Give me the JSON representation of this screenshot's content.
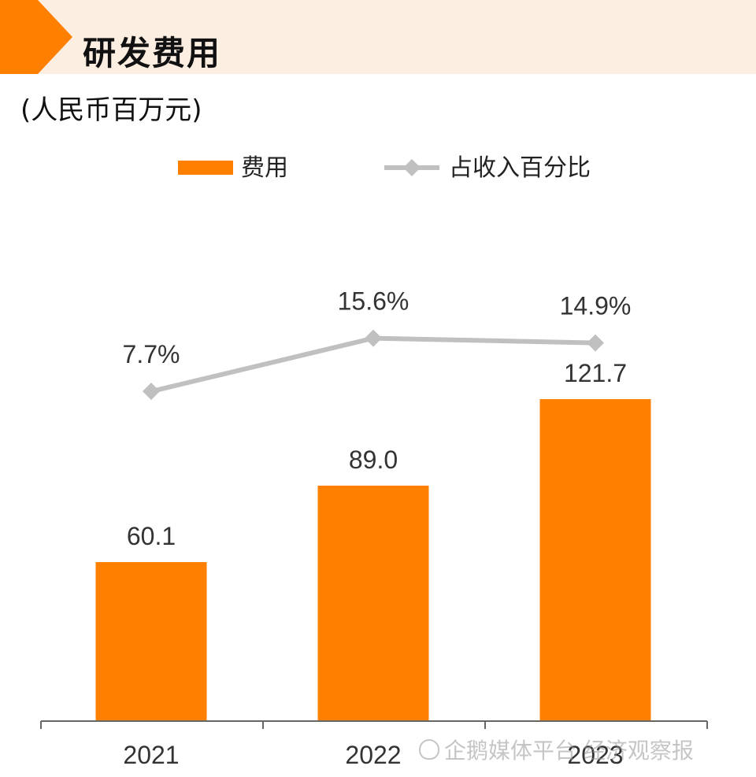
{
  "title": "研发费用",
  "unit_label": "(人民币百万元)",
  "watermark": "企鹅媒体平台 经济观察报",
  "colors": {
    "bar": "#ff7f00",
    "line": "#c0c0c0",
    "header_band": "#fdeee2",
    "header_arrow": "#ff7f00"
  },
  "chart_data": {
    "type": "bar",
    "categories": [
      "2021",
      "2022",
      "2023"
    ],
    "series": [
      {
        "name": "费用",
        "type": "bar",
        "values": [
          60.1,
          89.0,
          121.7
        ],
        "labels": [
          "60.1",
          "89.0",
          "121.7"
        ]
      },
      {
        "name": "占收入百分比",
        "type": "line",
        "values": [
          7.7,
          15.6,
          14.9
        ],
        "labels": [
          "7.7%",
          "15.6%",
          "14.9%"
        ]
      }
    ],
    "legend": {
      "placement": "top"
    },
    "grid": false
  }
}
